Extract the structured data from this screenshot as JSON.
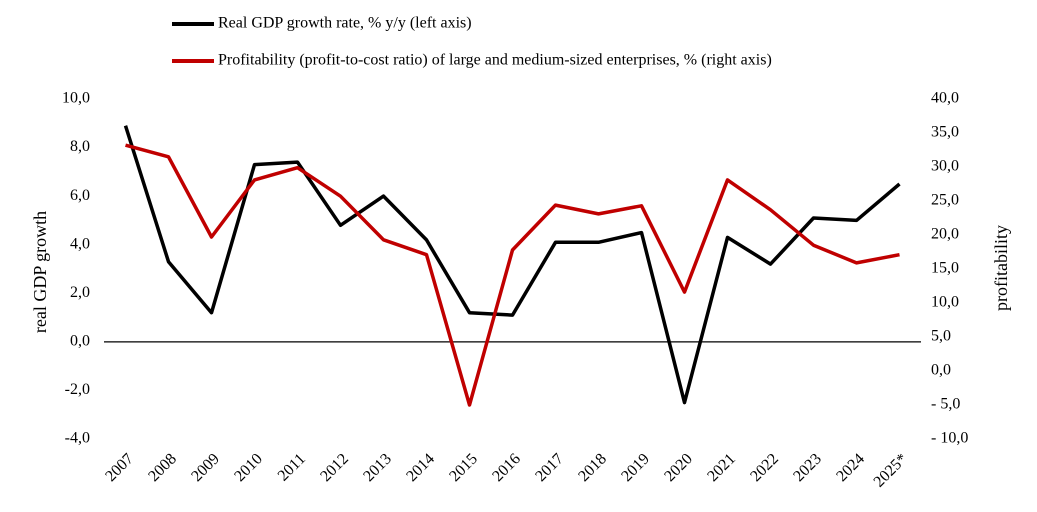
{
  "chart_data": {
    "type": "line",
    "categories": [
      "2007",
      "2008",
      "2009",
      "2010",
      "2011",
      "2012",
      "2013",
      "2014",
      "2015",
      "2016",
      "2017",
      "2018",
      "2019",
      "2020",
      "2021",
      "2022",
      "2023",
      "2024",
      "2025*"
    ],
    "series": [
      {
        "name": "Real GDP growth rate, % y/y (left axis)",
        "color": "#000000",
        "axis": "y",
        "values": [
          8.9,
          3.3,
          1.2,
          7.3,
          7.4,
          4.8,
          6.0,
          4.2,
          1.2,
          1.1,
          4.1,
          4.1,
          4.5,
          -2.5,
          4.3,
          3.2,
          5.1,
          5.0,
          6.5
        ]
      },
      {
        "name": "Profitability (profit-to-cost ratio) of large and medium-sized enterprises, % (right axis)",
        "color": "#c00000",
        "axis": "y2",
        "values": [
          33.2,
          31.5,
          19.7,
          28.1,
          29.9,
          25.7,
          19.3,
          17.1,
          -5.0,
          17.8,
          24.4,
          23.1,
          24.3,
          11.6,
          28.1,
          23.7,
          18.5,
          15.9,
          17.1
        ]
      }
    ],
    "ylabel": "real GDP growth",
    "y2label": "profitability",
    "ylim": [
      -4,
      10
    ],
    "yticks": [
      {
        "value": -4,
        "label": "-4,0"
      },
      {
        "value": -2,
        "label": "-2,0"
      },
      {
        "value": 0,
        "label": "0,0"
      },
      {
        "value": 2,
        "label": "2,0"
      },
      {
        "value": 4,
        "label": "4,0"
      },
      {
        "value": 6,
        "label": "6,0"
      },
      {
        "value": 8,
        "label": "8,0"
      },
      {
        "value": 10,
        "label": "10,0"
      }
    ],
    "y2lim": [
      -10,
      40
    ],
    "y2ticks": [
      {
        "value": -10,
        "label": "- 10,0"
      },
      {
        "value": -5,
        "label": "- 5,0"
      },
      {
        "value": 0,
        "label": "0,0"
      },
      {
        "value": 5,
        "label": "5,0"
      },
      {
        "value": 10,
        "label": "10,0"
      },
      {
        "value": 15,
        "label": "15,0"
      },
      {
        "value": 20,
        "label": "20,0"
      },
      {
        "value": 25,
        "label": "25,0"
      },
      {
        "value": 30,
        "label": "30,0"
      },
      {
        "value": 35,
        "label": "35,0"
      },
      {
        "value": 40,
        "label": "40,0"
      }
    ],
    "legend": "top"
  }
}
